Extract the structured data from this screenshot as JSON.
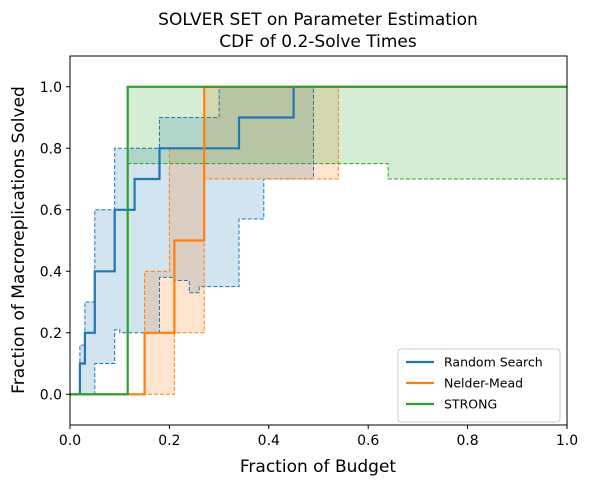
{
  "chart_data": {
    "type": "line",
    "title_line1": "SOLVER SET on Parameter Estimation",
    "title_line2": "CDF of 0.2-Solve Times",
    "xlabel": "Fraction of Budget",
    "ylabel": "Fraction of Macroreplications Solved",
    "xlim": [
      0,
      1
    ],
    "ylim": [
      -0.1,
      1.1
    ],
    "xticks": [
      0,
      0.2,
      0.4,
      0.6,
      0.8,
      1.0
    ],
    "xtick_labels": [
      "0.0",
      "0.2",
      "0.4",
      "0.6",
      "0.8",
      "1.0"
    ],
    "yticks": [
      0,
      0.2,
      0.4,
      0.6,
      0.8,
      1.0
    ],
    "ytick_labels": [
      "0.0",
      "0.2",
      "0.4",
      "0.6",
      "0.8",
      "1.0"
    ],
    "legend_position": "lower-right",
    "series": [
      {
        "name": "Random Search",
        "color": "#1f77b4",
        "cdf": [
          [
            0,
            0
          ],
          [
            0.02,
            0
          ],
          [
            0.02,
            0.1
          ],
          [
            0.03,
            0.1
          ],
          [
            0.03,
            0.2
          ],
          [
            0.05,
            0.2
          ],
          [
            0.05,
            0.4
          ],
          [
            0.09,
            0.4
          ],
          [
            0.09,
            0.6
          ],
          [
            0.13,
            0.6
          ],
          [
            0.13,
            0.7
          ],
          [
            0.18,
            0.7
          ],
          [
            0.18,
            0.8
          ],
          [
            0.34,
            0.8
          ],
          [
            0.34,
            0.9
          ],
          [
            0.45,
            0.9
          ],
          [
            0.45,
            1.0
          ],
          [
            1.0,
            1.0
          ]
        ],
        "ci_upper": [
          [
            0,
            0
          ],
          [
            0.02,
            0
          ],
          [
            0.02,
            0.16
          ],
          [
            0.03,
            0.16
          ],
          [
            0.03,
            0.3
          ],
          [
            0.05,
            0.3
          ],
          [
            0.05,
            0.6
          ],
          [
            0.09,
            0.6
          ],
          [
            0.09,
            0.8
          ],
          [
            0.18,
            0.8
          ],
          [
            0.18,
            0.9
          ],
          [
            0.3,
            0.9
          ],
          [
            0.3,
            1.0
          ],
          [
            1.0,
            1.0
          ]
        ],
        "ci_lower": [
          [
            0,
            0
          ],
          [
            0.05,
            0
          ],
          [
            0.05,
            0.1
          ],
          [
            0.09,
            0.1
          ],
          [
            0.09,
            0.21
          ],
          [
            0.1,
            0.21
          ],
          [
            0.1,
            0.2
          ],
          [
            0.18,
            0.2
          ],
          [
            0.18,
            0.38
          ],
          [
            0.21,
            0.38
          ],
          [
            0.21,
            0.37
          ],
          [
            0.24,
            0.37
          ],
          [
            0.24,
            0.33
          ],
          [
            0.26,
            0.33
          ],
          [
            0.26,
            0.35
          ],
          [
            0.34,
            0.35
          ],
          [
            0.34,
            0.57
          ],
          [
            0.39,
            0.57
          ],
          [
            0.39,
            0.7
          ],
          [
            0.49,
            0.7
          ],
          [
            0.49,
            1.0
          ],
          [
            1.0,
            1.0
          ]
        ]
      },
      {
        "name": "Nelder-Mead",
        "color": "#ff7f0e",
        "cdf": [
          [
            0,
            0
          ],
          [
            0.15,
            0
          ],
          [
            0.15,
            0.2
          ],
          [
            0.21,
            0.2
          ],
          [
            0.21,
            0.5
          ],
          [
            0.27,
            0.5
          ],
          [
            0.27,
            1.0
          ],
          [
            1.0,
            1.0
          ]
        ],
        "ci_upper": [
          [
            0,
            0
          ],
          [
            0.15,
            0
          ],
          [
            0.15,
            0.4
          ],
          [
            0.2,
            0.4
          ],
          [
            0.2,
            0.8
          ],
          [
            0.27,
            0.8
          ],
          [
            0.27,
            1.0
          ],
          [
            1.0,
            1.0
          ]
        ],
        "ci_lower": [
          [
            0,
            0
          ],
          [
            0.21,
            0
          ],
          [
            0.21,
            0.2
          ],
          [
            0.27,
            0.2
          ],
          [
            0.27,
            0.7
          ],
          [
            0.54,
            0.7
          ],
          [
            0.54,
            1.0
          ],
          [
            1.0,
            1.0
          ]
        ]
      },
      {
        "name": "STRONG",
        "color": "#2ca02c",
        "cdf": [
          [
            0,
            0
          ],
          [
            0.116,
            0
          ],
          [
            0.116,
            1.0
          ],
          [
            1.0,
            1.0
          ]
        ],
        "ci_upper": [
          [
            0,
            0
          ],
          [
            0.116,
            0
          ],
          [
            0.116,
            1.0
          ],
          [
            1.0,
            1.0
          ]
        ],
        "ci_lower": [
          [
            0,
            0
          ],
          [
            0.116,
            0
          ],
          [
            0.116,
            0.75
          ],
          [
            0.64,
            0.75
          ],
          [
            0.64,
            0.7
          ],
          [
            1.0,
            0.7
          ]
        ]
      }
    ]
  }
}
